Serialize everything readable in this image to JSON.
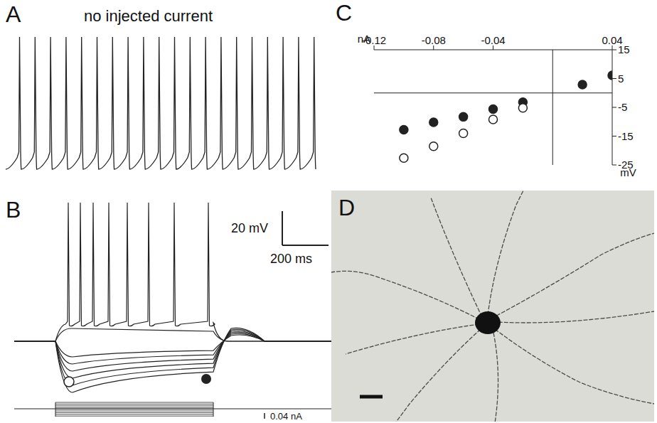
{
  "figure": {
    "panels": [
      {
        "label": "A",
        "title": "no injected current"
      },
      {
        "label": "B",
        "scale_bars": {
          "voltage": "20 mV",
          "time": "200 ms",
          "current": "0.04 nA"
        }
      },
      {
        "label": "C"
      },
      {
        "label": "D"
      }
    ]
  },
  "chart_data": {
    "type": "scatter",
    "x_label": "nA",
    "y_label": "mV",
    "xlim": [
      -0.12,
      0.04
    ],
    "ylim": [
      -25,
      15
    ],
    "xticks": [
      -0.12,
      -0.08,
      -0.04,
      0.04
    ],
    "yticks": [
      15,
      5,
      -5,
      -15,
      -25
    ],
    "series": [
      {
        "marker": "filled",
        "color": "#222222",
        "x": [
          -0.1,
          -0.08,
          -0.06,
          -0.04,
          -0.02,
          0.02,
          0.04
        ],
        "values": [
          -12.8,
          -10.2,
          -8.3,
          -5.6,
          -3.2,
          2.9,
          6.1
        ]
      },
      {
        "marker": "open",
        "color": "#222222",
        "x": [
          -0.1,
          -0.08,
          -0.06,
          -0.04,
          -0.02
        ],
        "values": [
          -22.6,
          -18.5,
          -14,
          -9.2,
          -5.2
        ]
      }
    ]
  }
}
